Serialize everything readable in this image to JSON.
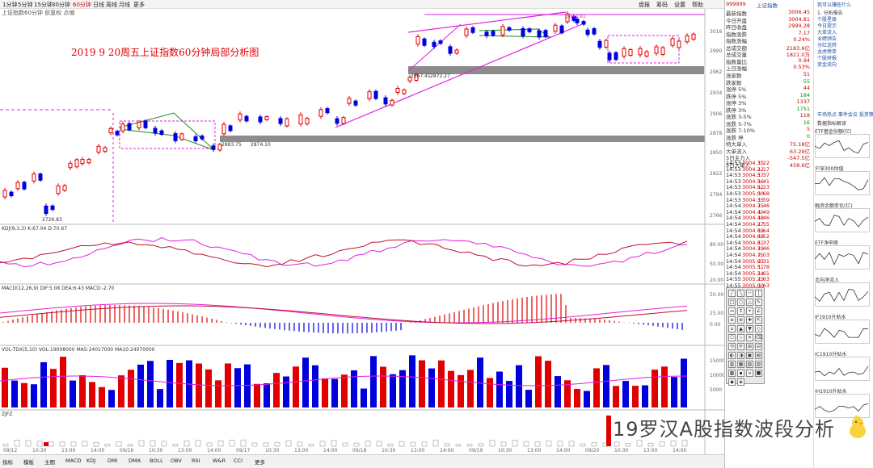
{
  "toolbar": {
    "periods": [
      "1分钟",
      "5分钟",
      "15分钟",
      "30分钟",
      "60分钟",
      "日线",
      "周线",
      "月线",
      "更多"
    ],
    "active": "60分钟",
    "right_items": [
      "盘报",
      "筹码",
      "设置",
      "帮助"
    ]
  },
  "chart_header": "上证指数60分钟 前复权 点缩",
  "annotation_title": "2019 9 20周五上证指数60分钟局部分析图",
  "price_axis": [
    "3016",
    "2990",
    "2962",
    "2934",
    "2906",
    "2878",
    "2850",
    "2822",
    "2794",
    "2766"
  ],
  "price_points": {
    "high": "3042.91",
    "low": "2726.83",
    "mid1": "2867.41",
    "mid2": "2872.27",
    "mid3": "2883.75",
    "mid4": "2874.10"
  },
  "ind1": {
    "header": "KDJ(9,3,3)  K:67.04  D:70.67",
    "ticks": [
      "80.00",
      "50.00",
      "20.00"
    ]
  },
  "ind2": {
    "header": "MACD(12,26,9)  DIF:5.08  DEA:6.43  MACD:-2.70",
    "ticks": [
      "50.00",
      "25.00",
      "0.00"
    ]
  },
  "ind3": {
    "header": "VOL-TDX(5,10)  VOL:19008000  MA5:24017000  MA10:24070000",
    "ticks": [
      "15000",
      "10000",
      "5000"
    ]
  },
  "ind4": {
    "header": "ZJFZ"
  },
  "time_axis": [
    "09/12",
    "10:30",
    "13:00",
    "14:00",
    "09/16",
    "10:30",
    "13:00",
    "14:00",
    "09/17",
    "10:30",
    "13:00",
    "14:00",
    "09/18",
    "10:30",
    "13:00",
    "14:00",
    "09/19",
    "10:30",
    "13:00",
    "14:00",
    "09/20",
    "10:30",
    "13:00",
    "14:00"
  ],
  "bottom_bar": [
    "指标",
    "模板",
    "主图",
    "MACD",
    "KDJ",
    "DMI",
    "DMA",
    "BOLL",
    "OBV",
    "RSI",
    "W&R",
    "CCI",
    "更多"
  ],
  "quote": {
    "code": "999999",
    "name": "上证指数",
    "rows": [
      {
        "k": "最新指数",
        "v": "3006.45"
      },
      {
        "k": "今日开盘",
        "v": "3004.81"
      },
      {
        "k": "昨日收盘",
        "v": "2999.28"
      },
      {
        "k": "指数涨跌",
        "v": "7.17"
      },
      {
        "k": "指数涨幅",
        "v": "0.24%"
      },
      {
        "k": "总成交额",
        "v": "2183.6亿"
      },
      {
        "k": "总成交量",
        "v": "1821.0万"
      },
      {
        "k": "指数量比",
        "v": "0.94"
      },
      {
        "k": "上日涨幅",
        "v": "0.53%"
      }
    ],
    "stats": [
      {
        "k": "涨家数",
        "v": "51"
      },
      {
        "k": "跌家数",
        "v": "55"
      },
      {
        "k": "涨停 5%",
        "v": "44"
      },
      {
        "k": "跌停 5%",
        "v": "184"
      },
      {
        "k": "涨停 3%",
        "v": "1337"
      },
      {
        "k": "跌停 3%",
        "v": "1751"
      },
      {
        "k": "涨跌 3-5%",
        "v": "118"
      },
      {
        "k": "涨跌 5-7%",
        "v": "16"
      },
      {
        "k": "涨跌 7-10%",
        "v": "5"
      },
      {
        "k": "涨跌 停",
        "v": "0"
      }
    ],
    "flows": [
      {
        "k": "特大单入",
        "v": "75.18亿"
      },
      {
        "k": "大单流入",
        "v": "63.29亿"
      },
      {
        "k": "5日主力入",
        "v": "-547.5亿"
      },
      {
        "k": "5日大单入",
        "v": "458.6亿"
      }
    ]
  },
  "ticks": [
    {
      "t": "14:53",
      "p": "3004.35",
      "c": "1.22"
    },
    {
      "t": "14:53",
      "p": "3004.22",
      "c": "1.17"
    },
    {
      "t": "14:53",
      "p": "3004.57",
      "c": "1.37"
    },
    {
      "t": "14:53",
      "p": "3004.56",
      "c": "1.41"
    },
    {
      "t": "14:53",
      "p": "3004.92",
      "c": "1.23"
    },
    {
      "t": "14:53",
      "p": "3005.00",
      "c": "1.68"
    },
    {
      "t": "14:53",
      "p": "3004.35",
      "c": "1.59"
    },
    {
      "t": "14:54",
      "p": "3004.75",
      "c": "1.46"
    },
    {
      "t": "14:54",
      "p": "3004.40",
      "c": "1.49"
    },
    {
      "t": "14:54",
      "p": "3004.48",
      "c": "1.46"
    },
    {
      "t": "14:54",
      "p": "3004.27",
      "c": "1.55"
    },
    {
      "t": "14:54",
      "p": "3004.69",
      "c": "1.64"
    },
    {
      "t": "14:54",
      "p": "3004.69",
      "c": "1.52"
    },
    {
      "t": "14:54",
      "p": "3004.81",
      "c": "1.37"
    },
    {
      "t": "14:54",
      "p": "3004.79",
      "c": "1.46"
    },
    {
      "t": "14:54",
      "p": "3004.71",
      "c": "2.03"
    },
    {
      "t": "14:54",
      "p": "3005.03",
      "c": "2.31"
    },
    {
      "t": "14:54",
      "p": "3005.51",
      "c": "1.78"
    },
    {
      "t": "14:54",
      "p": "3005.24",
      "c": "1.61"
    },
    {
      "t": "14:55",
      "p": "3005.25",
      "c": "1.63"
    },
    {
      "t": "14:55",
      "p": "3005.00",
      "c": "1.63"
    }
  ],
  "news": {
    "title": "我可以赚些什么",
    "items": [
      "1. 分析报告",
      "个股星级",
      "今日提示",
      "大单流入",
      "业绩预告",
      "分红送转",
      "龙虎榜单",
      "个股研报",
      "资金流向"
    ],
    "section2": "市场热点 事件会议 投资策略",
    "section3": "数据指标解读",
    "mini_titles": [
      "ETF基金份额(亿)",
      "沪深300估值",
      "融资余额变化(亿)",
      "ETF净申赎",
      "北向净流入",
      "IF1910升贴水",
      "IC1910升贴水",
      "IH1910升贴水"
    ]
  },
  "watermark": "19罗汉A股指数波段分析",
  "colors": {
    "up": "#e00000",
    "down": "#0000dd",
    "magenta": "#e020e0",
    "grey_band": "#8c8c8c"
  }
}
